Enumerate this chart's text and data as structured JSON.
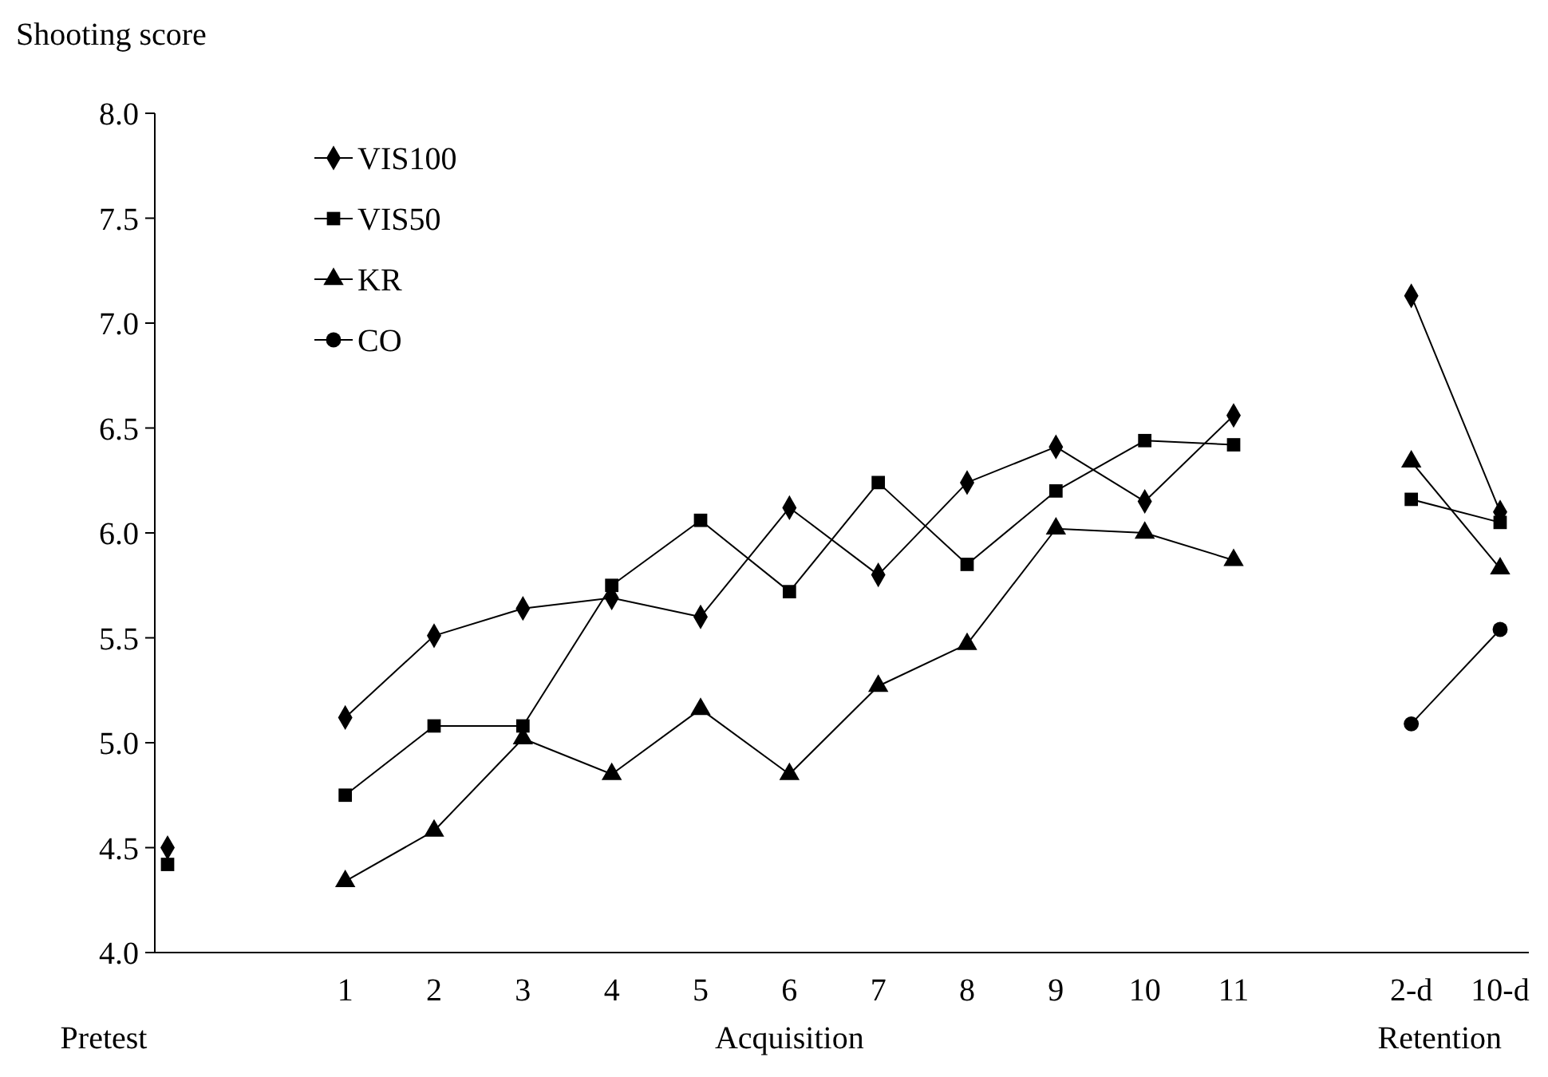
{
  "chart_data": {
    "type": "line",
    "ylabel": "Shooting score",
    "categories": [
      null,
      null,
      "1",
      "2",
      "3",
      "4",
      "5",
      "6",
      "7",
      "8",
      "9",
      "10",
      "11",
      null,
      "2-d",
      "10-d"
    ],
    "ylim": [
      4.0,
      8.0
    ],
    "yticks": [
      {
        "value": 4,
        "label": "4.0"
      },
      {
        "value": 4.5,
        "label": "4.5"
      },
      {
        "value": 5,
        "label": "5.0"
      },
      {
        "value": 5.5,
        "label": "5.5"
      },
      {
        "value": 6,
        "label": "6.0"
      },
      {
        "value": 6.5,
        "label": "6.5"
      },
      {
        "value": 7,
        "label": "7.0"
      },
      {
        "value": 7.5,
        "label": "7.5"
      },
      {
        "value": 8,
        "label": "8.0"
      }
    ],
    "series": [
      {
        "name": "VIS100",
        "color": "#000000",
        "marker": "diamond",
        "values": [
          4.5,
          null,
          5.12,
          5.51,
          5.64,
          5.69,
          5.6,
          6.12,
          5.8,
          6.24,
          6.41,
          6.15,
          6.56,
          null,
          7.13,
          6.1
        ]
      },
      {
        "name": "VIS50",
        "color": "#000000",
        "marker": "square",
        "values": [
          4.42,
          null,
          4.75,
          5.08,
          5.08,
          5.75,
          6.06,
          5.72,
          6.24,
          5.85,
          6.2,
          6.44,
          6.42,
          null,
          6.16,
          6.05
        ]
      },
      {
        "name": "KR",
        "color": "#000000",
        "marker": "triangle",
        "values": [
          null,
          null,
          4.34,
          4.58,
          5.02,
          4.85,
          5.16,
          4.85,
          5.27,
          5.47,
          6.02,
          6.0,
          5.87,
          null,
          6.34,
          5.83
        ]
      },
      {
        "name": "CO",
        "color": "#000000",
        "marker": "circle",
        "values": [
          null,
          null,
          null,
          null,
          null,
          null,
          null,
          null,
          null,
          null,
          null,
          null,
          null,
          null,
          5.09,
          5.54
        ]
      }
    ],
    "annotations": [
      "Pretest",
      "Acquisition",
      "Retention"
    ],
    "legend": "top left",
    "grid": false
  }
}
